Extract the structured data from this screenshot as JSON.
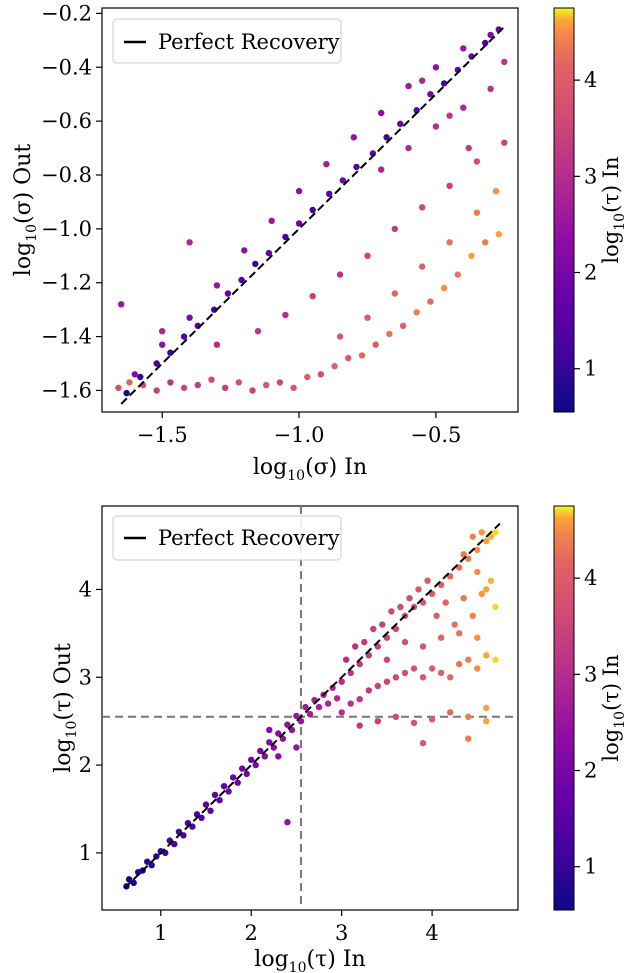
{
  "chart_data": [
    {
      "type": "scatter",
      "xlabel_main": "log",
      "xlabel_sub": "10",
      "xlabel_tail": "(σ) In",
      "ylabel_main": "log",
      "ylabel_sub": "10",
      "ylabel_tail": "(σ) Out",
      "xlim": [
        -1.72,
        -0.2
      ],
      "ylim": [
        -1.68,
        -0.18
      ],
      "x_ticks": [
        -1.5,
        -1.0,
        -0.5
      ],
      "x_tick_labels": [
        "−1.5",
        "−1.0",
        "−0.5"
      ],
      "y_ticks": [
        -1.6,
        -1.4,
        -1.2,
        -1.0,
        -0.8,
        -0.6,
        -0.4,
        -0.2
      ],
      "y_tick_labels": [
        "−1.6",
        "−1.4",
        "−1.2",
        "−1.0",
        "−0.8",
        "−0.6",
        "−0.4",
        "−0.2"
      ],
      "legend": {
        "label": "Perfect Recovery",
        "placement": "top-left"
      },
      "reference_line": {
        "x": [
          -1.65,
          -0.25
        ],
        "y": [
          -1.65,
          -0.25
        ]
      },
      "colorbar": {
        "label_main": "log",
        "label_sub": "10",
        "label_tail": "(τ) In",
        "range": [
          0.55,
          4.75
        ],
        "ticks": [
          1,
          2,
          3,
          4
        ],
        "tick_labels": [
          "1",
          "2",
          "3",
          "4"
        ],
        "colormap": "plasma"
      },
      "points": [
        [
          -1.63,
          -1.61,
          0.7
        ],
        [
          -1.58,
          -1.55,
          1.0
        ],
        [
          -1.52,
          -1.5,
          1.2
        ],
        [
          -1.47,
          -1.46,
          1.0
        ],
        [
          -1.42,
          -1.4,
          1.3
        ],
        [
          -1.37,
          -1.36,
          1.5
        ],
        [
          -1.31,
          -1.3,
          1.2
        ],
        [
          -1.26,
          -1.24,
          1.6
        ],
        [
          -1.21,
          -1.19,
          1.4
        ],
        [
          -1.16,
          -1.13,
          1.1
        ],
        [
          -1.11,
          -1.09,
          1.7
        ],
        [
          -1.05,
          -1.03,
          1.3
        ],
        [
          -1.0,
          -0.98,
          1.8
        ],
        [
          -0.95,
          -0.93,
          1.2
        ],
        [
          -0.89,
          -0.87,
          1.6
        ],
        [
          -0.84,
          -0.82,
          1.9
        ],
        [
          -0.79,
          -0.77,
          1.4
        ],
        [
          -0.73,
          -0.72,
          1.7
        ],
        [
          -0.68,
          -0.66,
          1.1
        ],
        [
          -0.63,
          -0.61,
          1.8
        ],
        [
          -0.57,
          -0.56,
          1.5
        ],
        [
          -0.52,
          -0.5,
          2.0
        ],
        [
          -0.47,
          -0.46,
          1.3
        ],
        [
          -0.42,
          -0.41,
          1.6
        ],
        [
          -0.37,
          -0.36,
          1.9
        ],
        [
          -0.32,
          -0.31,
          1.2
        ],
        [
          -0.27,
          -0.26,
          1.7
        ],
        [
          -1.6,
          -1.54,
          2.3
        ],
        [
          -1.5,
          -1.43,
          2.4
        ],
        [
          -1.4,
          -1.33,
          2.2
        ],
        [
          -1.3,
          -1.21,
          2.5
        ],
        [
          -1.2,
          -1.08,
          2.3
        ],
        [
          -1.1,
          -0.97,
          2.6
        ],
        [
          -1.0,
          -0.86,
          2.4
        ],
        [
          -0.9,
          -0.76,
          2.7
        ],
        [
          -0.8,
          -0.66,
          2.5
        ],
        [
          -0.7,
          -0.57,
          2.3
        ],
        [
          -0.6,
          -0.47,
          2.6
        ],
        [
          -0.5,
          -0.4,
          2.4
        ],
        [
          -0.4,
          -0.33,
          2.5
        ],
        [
          -0.3,
          -0.28,
          2.2
        ],
        [
          -1.66,
          -1.59,
          3.8
        ],
        [
          -1.62,
          -1.57,
          4.1
        ],
        [
          -1.57,
          -1.58,
          3.6
        ],
        [
          -1.52,
          -1.6,
          3.4
        ],
        [
          -1.47,
          -1.57,
          3.2
        ],
        [
          -1.42,
          -1.59,
          3.5
        ],
        [
          -1.37,
          -1.58,
          3.3
        ],
        [
          -1.32,
          -1.56,
          3.6
        ],
        [
          -1.27,
          -1.59,
          3.4
        ],
        [
          -1.22,
          -1.57,
          3.7
        ],
        [
          -1.17,
          -1.6,
          3.5
        ],
        [
          -1.12,
          -1.58,
          3.8
        ],
        [
          -1.07,
          -1.57,
          3.6
        ],
        [
          -1.02,
          -1.59,
          3.9
        ],
        [
          -0.97,
          -1.55,
          4.0
        ],
        [
          -0.92,
          -1.54,
          3.7
        ],
        [
          -0.87,
          -1.51,
          4.1
        ],
        [
          -0.82,
          -1.48,
          3.9
        ],
        [
          -0.77,
          -1.47,
          4.2
        ],
        [
          -0.72,
          -1.43,
          4.0
        ],
        [
          -0.67,
          -1.39,
          4.3
        ],
        [
          -0.62,
          -1.36,
          4.1
        ],
        [
          -0.57,
          -1.31,
          4.4
        ],
        [
          -0.52,
          -1.27,
          4.2
        ],
        [
          -0.47,
          -1.22,
          4.5
        ],
        [
          -0.42,
          -1.17,
          4.3
        ],
        [
          -0.37,
          -1.1,
          4.6
        ],
        [
          -0.32,
          -1.05,
          4.4
        ],
        [
          -0.27,
          -1.02,
          4.6
        ],
        [
          -1.15,
          -1.38,
          3.2
        ],
        [
          -1.05,
          -1.32,
          3.0
        ],
        [
          -0.95,
          -1.25,
          3.4
        ],
        [
          -0.85,
          -1.17,
          3.1
        ],
        [
          -0.75,
          -1.1,
          3.5
        ],
        [
          -0.65,
          -1.0,
          3.3
        ],
        [
          -0.55,
          -0.92,
          3.6
        ],
        [
          -0.45,
          -0.84,
          3.4
        ],
        [
          -0.35,
          -0.75,
          3.7
        ],
        [
          -0.25,
          -0.68,
          3.5
        ],
        [
          -0.85,
          -1.4,
          3.9
        ],
        [
          -0.75,
          -1.33,
          4.0
        ],
        [
          -0.65,
          -1.24,
          4.2
        ],
        [
          -0.55,
          -1.14,
          4.1
        ],
        [
          -0.45,
          -1.05,
          4.3
        ],
        [
          -0.35,
          -0.94,
          4.4
        ],
        [
          -0.28,
          -0.86,
          4.5
        ],
        [
          -0.7,
          -0.78,
          2.8
        ],
        [
          -0.6,
          -0.7,
          2.9
        ],
        [
          -0.5,
          -0.62,
          3.0
        ],
        [
          -0.4,
          -0.55,
          2.9
        ],
        [
          -0.3,
          -0.48,
          3.1
        ],
        [
          -0.45,
          -0.58,
          3.2
        ],
        [
          -0.38,
          -0.7,
          3.3
        ],
        [
          -1.65,
          -1.28,
          2.6
        ],
        [
          -1.5,
          -1.38,
          2.8
        ],
        [
          -1.3,
          -1.43,
          3.0
        ],
        [
          -1.4,
          -1.05,
          2.9
        ],
        [
          -0.55,
          -0.45,
          2.9
        ],
        [
          -0.25,
          -0.38,
          3.2
        ]
      ]
    },
    {
      "type": "scatter",
      "xlabel_main": "log",
      "xlabel_sub": "10",
      "xlabel_tail": "(τ) In",
      "ylabel_main": "log",
      "ylabel_sub": "10",
      "ylabel_tail": "(τ) Out",
      "xlim": [
        0.35,
        4.95
      ],
      "ylim": [
        0.35,
        4.95
      ],
      "x_ticks": [
        1,
        2,
        3,
        4
      ],
      "x_tick_labels": [
        "1",
        "2",
        "3",
        "4"
      ],
      "y_ticks": [
        1,
        2,
        3,
        4
      ],
      "y_tick_labels": [
        "1",
        "2",
        "3",
        "4"
      ],
      "legend": {
        "label": "Perfect Recovery",
        "placement": "top-left"
      },
      "reference_line": {
        "x": [
          0.6,
          4.75
        ],
        "y": [
          0.6,
          4.75
        ]
      },
      "threshold_lines": {
        "x": 2.55,
        "y": 2.55
      },
      "colorbar": {
        "label_main": "log",
        "label_sub": "10",
        "label_tail": "(τ) In",
        "range": [
          0.55,
          4.75
        ],
        "ticks": [
          1,
          2,
          3,
          4
        ],
        "tick_labels": [
          "1",
          "2",
          "3",
          "4"
        ],
        "colormap": "plasma"
      },
      "points": [
        [
          0.62,
          0.62
        ],
        [
          0.65,
          0.7
        ],
        [
          0.7,
          0.66
        ],
        [
          0.75,
          0.78
        ],
        [
          0.8,
          0.8
        ],
        [
          0.85,
          0.9
        ],
        [
          0.9,
          0.86
        ],
        [
          0.95,
          0.96
        ],
        [
          1.0,
          1.02
        ],
        [
          1.05,
          1.0
        ],
        [
          1.1,
          1.14
        ],
        [
          1.15,
          1.1
        ],
        [
          1.2,
          1.24
        ],
        [
          1.25,
          1.2
        ],
        [
          1.3,
          1.34
        ],
        [
          1.35,
          1.3
        ],
        [
          1.4,
          1.44
        ],
        [
          1.45,
          1.4
        ],
        [
          1.5,
          1.55
        ],
        [
          1.55,
          1.48
        ],
        [
          1.6,
          1.66
        ],
        [
          1.65,
          1.6
        ],
        [
          1.7,
          1.76
        ],
        [
          1.75,
          1.7
        ],
        [
          1.8,
          1.86
        ],
        [
          1.85,
          1.8
        ],
        [
          1.9,
          1.96
        ],
        [
          1.95,
          1.9
        ],
        [
          2.0,
          2.06
        ],
        [
          2.05,
          2.0
        ],
        [
          2.1,
          2.16
        ],
        [
          2.15,
          2.1
        ],
        [
          2.2,
          2.26
        ],
        [
          2.25,
          2.2
        ],
        [
          2.3,
          2.36
        ],
        [
          2.35,
          2.3
        ],
        [
          2.4,
          2.46
        ],
        [
          2.45,
          2.4
        ],
        [
          2.5,
          2.56
        ],
        [
          2.55,
          2.5
        ],
        [
          2.6,
          2.66
        ],
        [
          2.65,
          2.58
        ],
        [
          2.7,
          2.74
        ],
        [
          2.75,
          2.66
        ],
        [
          2.8,
          2.8
        ],
        [
          2.85,
          2.7
        ],
        [
          2.9,
          2.88
        ],
        [
          2.95,
          2.76
        ],
        [
          2.4,
          1.35
        ],
        [
          2.5,
          2.2
        ],
        [
          2.3,
          2.1
        ],
        [
          2.2,
          2.4
        ],
        [
          3.0,
          2.95
        ],
        [
          3.1,
          3.05
        ],
        [
          3.2,
          3.15
        ],
        [
          3.3,
          3.25
        ],
        [
          3.4,
          3.35
        ],
        [
          3.5,
          3.45
        ],
        [
          3.6,
          3.55
        ],
        [
          3.7,
          3.7
        ],
        [
          3.8,
          3.8
        ],
        [
          3.9,
          3.85
        ],
        [
          4.0,
          3.95
        ],
        [
          4.1,
          4.05
        ],
        [
          4.2,
          4.15
        ],
        [
          4.3,
          4.25
        ],
        [
          4.4,
          4.35
        ],
        [
          4.5,
          4.45
        ],
        [
          4.6,
          4.55
        ],
        [
          4.7,
          4.65
        ],
        [
          3.0,
          2.6
        ],
        [
          3.1,
          2.7
        ],
        [
          3.2,
          2.75
        ],
        [
          3.3,
          2.85
        ],
        [
          3.4,
          2.9
        ],
        [
          3.5,
          2.95
        ],
        [
          3.6,
          3.0
        ],
        [
          3.7,
          3.05
        ],
        [
          3.8,
          3.1
        ],
        [
          3.9,
          3.0
        ],
        [
          4.0,
          3.1
        ],
        [
          4.1,
          3.05
        ],
        [
          4.2,
          3.0
        ],
        [
          4.3,
          3.15
        ],
        [
          4.4,
          3.2
        ],
        [
          4.5,
          3.1
        ],
        [
          4.6,
          3.25
        ],
        [
          4.7,
          3.2
        ],
        [
          3.05,
          3.2
        ],
        [
          3.15,
          3.35
        ],
        [
          3.25,
          3.4
        ],
        [
          3.35,
          3.55
        ],
        [
          3.45,
          3.6
        ],
        [
          3.55,
          3.75
        ],
        [
          3.65,
          3.8
        ],
        [
          3.75,
          3.9
        ],
        [
          3.85,
          4.0
        ],
        [
          3.95,
          4.1
        ],
        [
          4.05,
          3.7
        ],
        [
          4.15,
          3.85
        ],
        [
          4.25,
          3.6
        ],
        [
          4.35,
          3.9
        ],
        [
          4.45,
          3.7
        ],
        [
          4.55,
          3.95
        ],
        [
          4.65,
          4.1
        ],
        [
          4.7,
          3.8
        ],
        [
          3.2,
          2.45
        ],
        [
          3.4,
          2.5
        ],
        [
          3.6,
          2.55
        ],
        [
          3.8,
          2.48
        ],
        [
          4.0,
          2.52
        ],
        [
          4.2,
          2.6
        ],
        [
          4.4,
          2.55
        ],
        [
          4.6,
          2.65
        ],
        [
          3.9,
          2.25
        ],
        [
          4.4,
          2.3
        ],
        [
          4.6,
          2.5
        ],
        [
          4.45,
          4.6
        ],
        [
          4.55,
          4.65
        ],
        [
          4.65,
          4.6
        ],
        [
          4.35,
          4.4
        ],
        [
          4.5,
          4.2
        ],
        [
          4.6,
          4.0
        ],
        [
          3.5,
          3.2
        ],
        [
          3.7,
          3.4
        ],
        [
          3.9,
          3.35
        ],
        [
          4.1,
          3.45
        ],
        [
          4.3,
          3.5
        ],
        [
          4.5,
          3.45
        ]
      ]
    }
  ]
}
